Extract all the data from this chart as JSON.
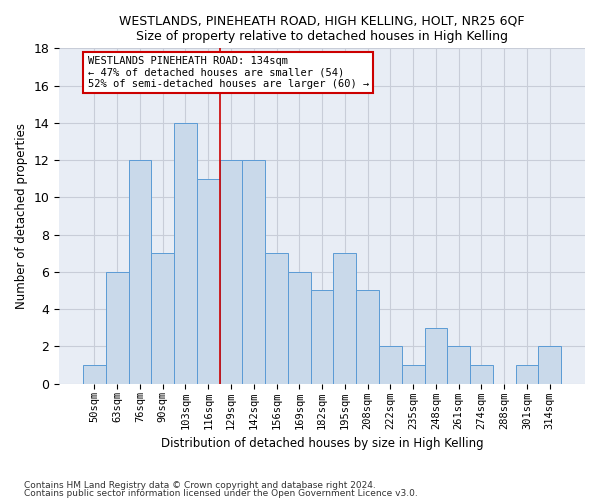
{
  "title1": "WESTLANDS, PINEHEATH ROAD, HIGH KELLING, HOLT, NR25 6QF",
  "title2": "Size of property relative to detached houses in High Kelling",
  "xlabel": "Distribution of detached houses by size in High Kelling",
  "ylabel": "Number of detached properties",
  "categories": [
    "50sqm",
    "63sqm",
    "76sqm",
    "90sqm",
    "103sqm",
    "116sqm",
    "129sqm",
    "142sqm",
    "156sqm",
    "169sqm",
    "182sqm",
    "195sqm",
    "208sqm",
    "222sqm",
    "235sqm",
    "248sqm",
    "261sqm",
    "274sqm",
    "288sqm",
    "301sqm",
    "314sqm"
  ],
  "values": [
    1,
    6,
    12,
    7,
    14,
    11,
    12,
    12,
    7,
    6,
    5,
    7,
    5,
    2,
    1,
    3,
    2,
    1,
    0,
    1,
    2
  ],
  "bar_color": "#c9d9ea",
  "bar_edge_color": "#5b9bd5",
  "vline_x": 5.5,
  "vline_color": "#cc0000",
  "annotation_title": "WESTLANDS PINEHEATH ROAD: 134sqm",
  "annotation_line1": "← 47% of detached houses are smaller (54)",
  "annotation_line2": "52% of semi-detached houses are larger (60) →",
  "annotation_box_facecolor": "#ffffff",
  "annotation_box_edgecolor": "#cc0000",
  "ylim": [
    0,
    18
  ],
  "yticks": [
    0,
    2,
    4,
    6,
    8,
    10,
    12,
    14,
    16,
    18
  ],
  "bg_color": "#e8edf5",
  "grid_color": "#c8cdd8",
  "footnote1": "Contains HM Land Registry data © Crown copyright and database right 2024.",
  "footnote2": "Contains public sector information licensed under the Open Government Licence v3.0."
}
